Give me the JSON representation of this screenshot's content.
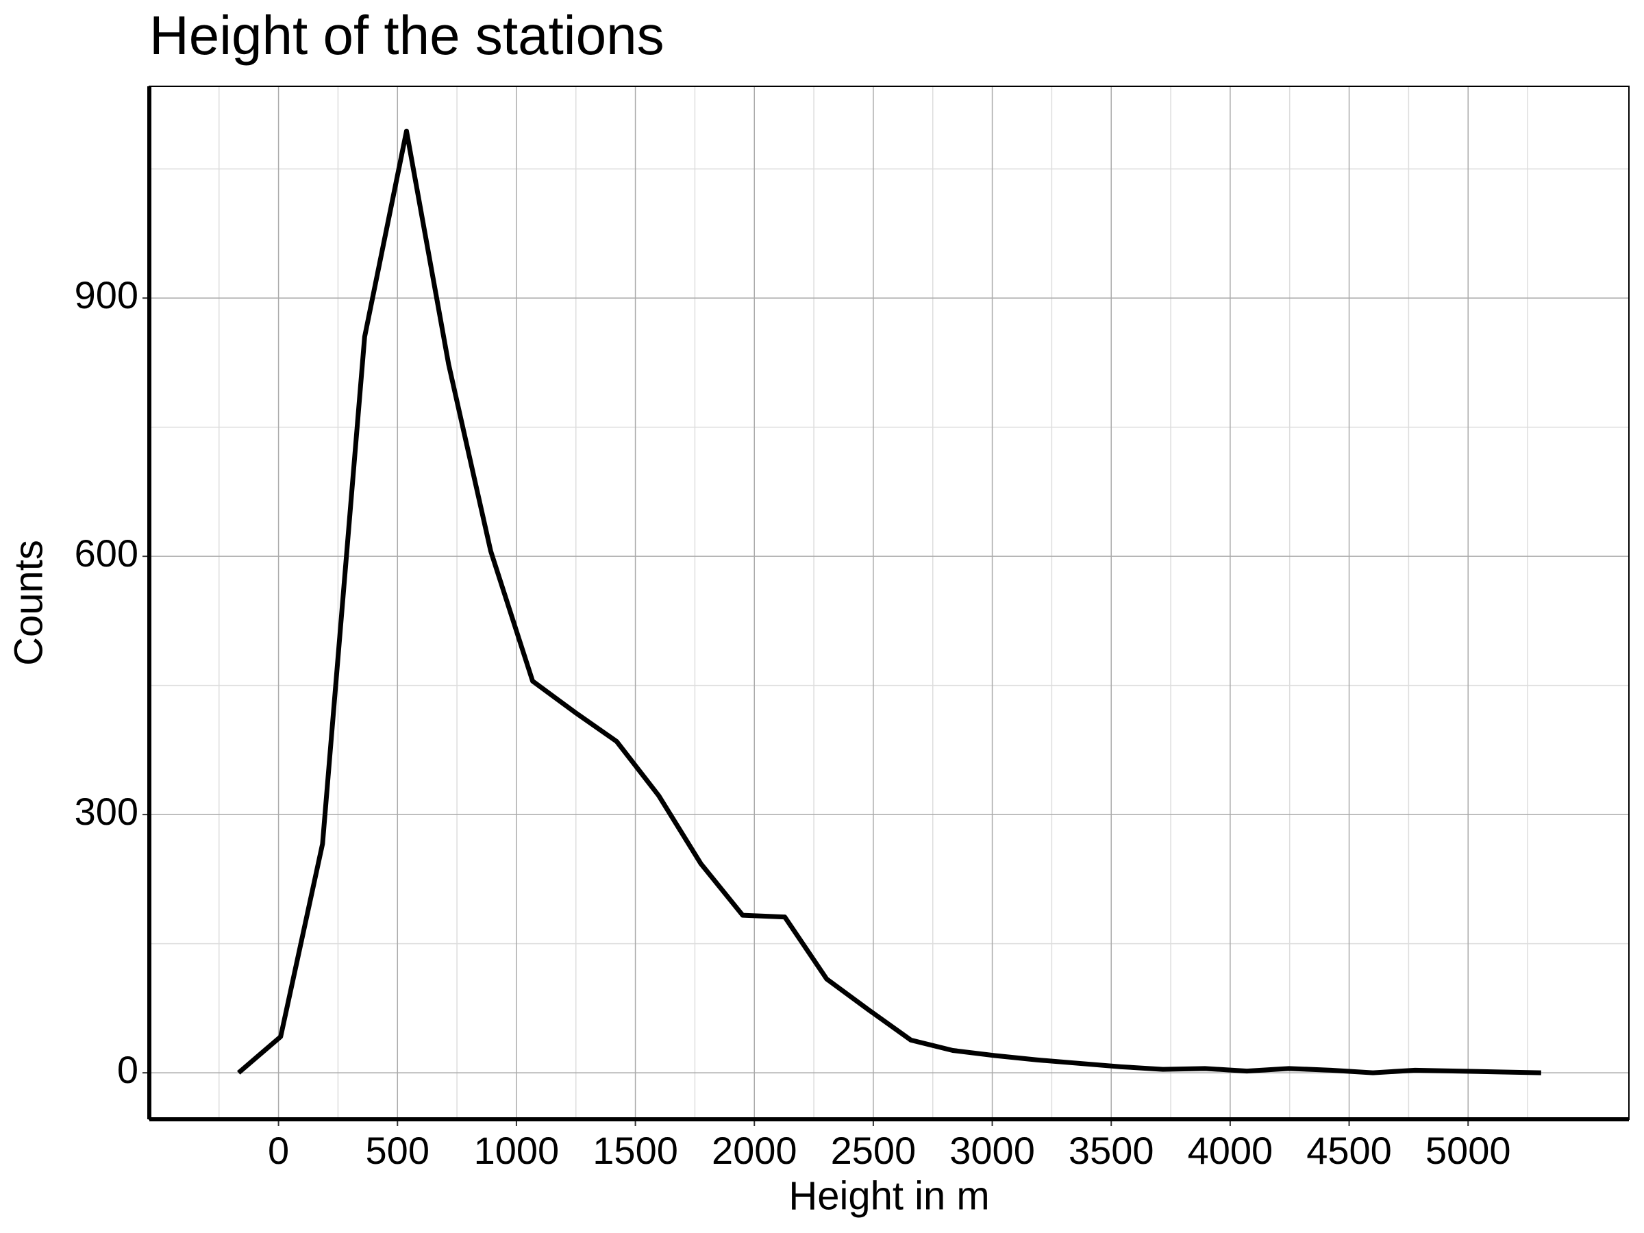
{
  "chart_data": {
    "type": "line",
    "title": "Height of the stations",
    "x_label": "Height in m",
    "y_label": "Counts",
    "x": [
      -168,
      9,
      185,
      362,
      538,
      715,
      892,
      1068,
      1245,
      1421,
      1598,
      1775,
      1951,
      2128,
      2304,
      2481,
      2658,
      2834,
      3011,
      3187,
      3364,
      3541,
      3717,
      3894,
      4070,
      4247,
      4424,
      4600,
      4777,
      4953,
      5130,
      5307
    ],
    "series": [
      {
        "color": "#000000",
        "values": [
          0,
          42,
          266,
          855,
          1094,
          823,
          606,
          455,
          419,
          385,
          322,
          243,
          183,
          181,
          109,
          73,
          38,
          26,
          20,
          15,
          11,
          7,
          4,
          5,
          2,
          5,
          3,
          0,
          3,
          2,
          1,
          0
        ]
      }
    ],
    "xlim": [
      -543,
      5676
    ],
    "ylim": [
      -54,
      1146
    ],
    "xticks": [
      0,
      500,
      1000,
      1500,
      2000,
      2500,
      3000,
      3500,
      4000,
      4500,
      5000
    ],
    "yticks": [
      0,
      300,
      600,
      900
    ],
    "x_minor_ticks": [
      -250,
      250,
      750,
      1250,
      1750,
      2250,
      2750,
      3250,
      3750,
      4250,
      4750,
      5250
    ],
    "y_minor_ticks": [
      150,
      450,
      750,
      1050
    ],
    "grid": true
  }
}
